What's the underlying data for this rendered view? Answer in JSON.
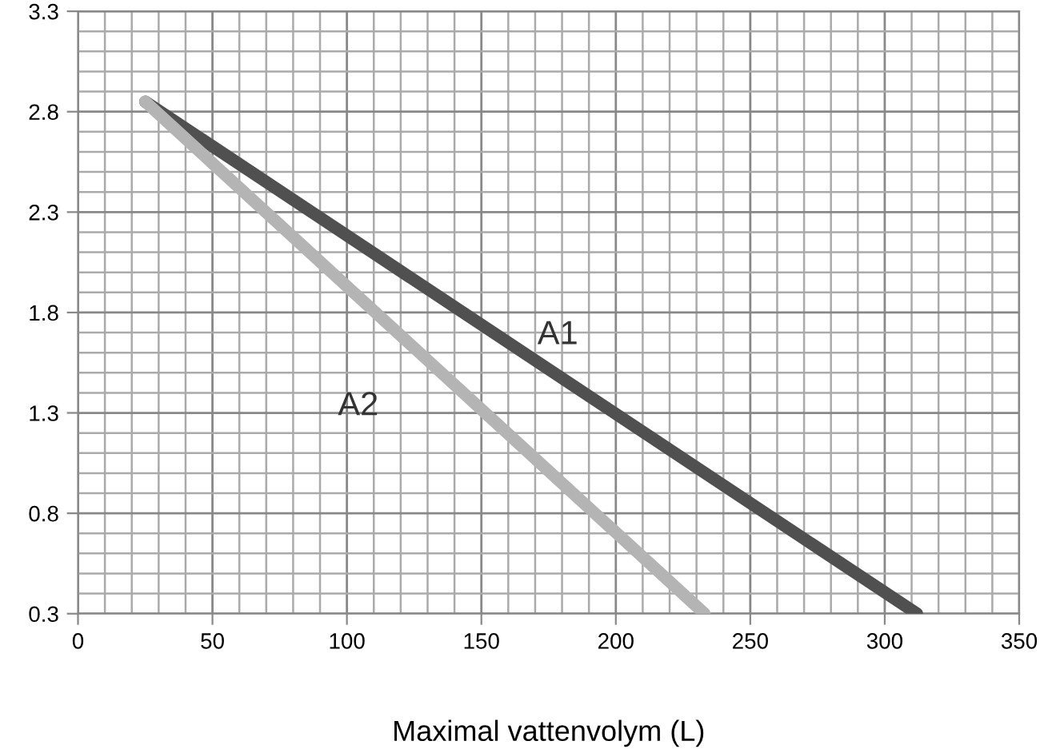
{
  "chart_data": {
    "type": "line",
    "xlabel": "Maximal vattenvolym (L)",
    "series": [
      {
        "name": "A1",
        "color": "#505050",
        "x": [
          25,
          312
        ],
        "values": [
          2.85,
          0.3
        ]
      },
      {
        "name": "A2",
        "color": "#b4b4b4",
        "x": [
          25,
          233
        ],
        "values": [
          2.85,
          0.3
        ]
      }
    ],
    "xlim": [
      0,
      350
    ],
    "xticks": [
      0,
      50,
      100,
      150,
      200,
      250,
      300,
      350
    ],
    "ylim": [
      0.3,
      3.3
    ],
    "yticks": [
      0.3,
      0.8,
      1.3,
      1.8,
      2.3,
      2.8,
      3.3
    ],
    "grid": true,
    "legend": false,
    "marker": "none",
    "line_style": "solid"
  }
}
